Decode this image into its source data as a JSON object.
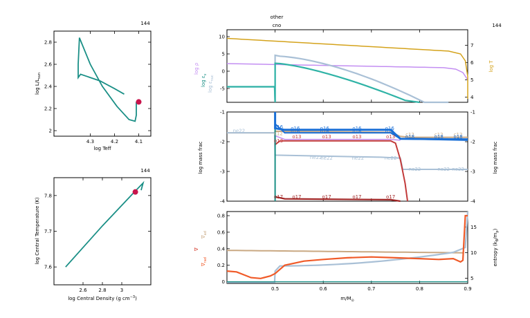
{
  "colors": {
    "teal": "#1a8f86",
    "teal_light": "#2fb3a6",
    "purple": "#c38ef2",
    "gold": "#d4a21a",
    "steel": "#a9c0d6",
    "blue": "#1a6fd6",
    "tan": "#c9a882",
    "red": "#c23a3a",
    "darkred": "#a02424",
    "orange": "#f05a28",
    "magenta_red": "#c8144c",
    "gray": "#999999"
  },
  "hr_panel": {
    "model_number": "144",
    "xlabel": "log Teff",
    "ylabel": "log L/L",
    "ylabel_sub": "sun"
  },
  "center_panel": {
    "model_number": "144",
    "xlabel": "log Central Density (g cm",
    "xlabel_sup": "−3",
    "ylabel": "log Central Temperature (K)"
  },
  "top_panel": {
    "header_line1": "other",
    "header_line2": "cno",
    "model_number": "144",
    "left_labels": [
      "log ρ",
      "log ε",
      "log ε"
    ],
    "left_label_subs": [
      "",
      "ν",
      "nuc"
    ],
    "right_label": "log T"
  },
  "mid_panel": {
    "ylabel_left": "log mass frac",
    "ylabel_right": "log mass frac",
    "species": [
      "ne22",
      "o16",
      "c12",
      "o18",
      "o13",
      "o17"
    ]
  },
  "bot_panel": {
    "left_labels": [
      "∇",
      "∇",
      "∇"
    ],
    "left_label_subs": [
      "ad",
      "",
      "rad"
    ],
    "right_label": "entropy (k",
    "right_label_sub": "B",
    "right_label_tail": "/m",
    "right_label_sub2": "p",
    "right_label_end": ")",
    "xlabel": "m/M",
    "xlabel_sub": "⊙"
  },
  "chart_data": [
    {
      "type": "line",
      "name": "hr_diagram",
      "x_reversed": true,
      "xlim": [
        4.45,
        4.05
      ],
      "ylim": [
        1.95,
        2.9
      ],
      "xticks": [
        4.3,
        4.2,
        4.1
      ],
      "yticks": [
        2,
        2.2,
        2.4,
        2.6,
        2.8
      ],
      "track": [
        [
          4.16,
          2.33
        ],
        [
          4.2,
          2.38
        ],
        [
          4.26,
          2.45
        ],
        [
          4.34,
          2.51
        ],
        [
          4.35,
          2.48
        ],
        [
          4.35,
          2.6
        ],
        [
          4.345,
          2.84
        ],
        [
          4.3,
          2.6
        ],
        [
          4.25,
          2.4
        ],
        [
          4.19,
          2.22
        ],
        [
          4.14,
          2.1
        ],
        [
          4.115,
          2.085
        ],
        [
          4.11,
          2.14
        ],
        [
          4.11,
          2.21
        ],
        [
          4.11,
          2.26
        ]
      ],
      "current": [
        4.1,
        2.26
      ]
    },
    {
      "type": "line",
      "name": "central_conditions",
      "xlim": [
        2.3,
        3.3
      ],
      "ylim": [
        7.55,
        7.85
      ],
      "xticks": [
        2.6,
        2.8,
        3
      ],
      "yticks": [
        7.6,
        7.7,
        7.8
      ],
      "track": [
        [
          2.42,
          7.6
        ],
        [
          2.8,
          7.715
        ],
        [
          3.13,
          7.81
        ],
        [
          3.22,
          7.835
        ],
        [
          3.2,
          7.815
        ]
      ],
      "current": [
        3.14,
        7.81
      ]
    },
    {
      "type": "line",
      "name": "structure_top",
      "xlim": [
        0.4,
        0.9
      ],
      "ylim": [
        -9,
        12
      ],
      "ylim_right": [
        3.7,
        7.9
      ],
      "xticks": [
        0.5,
        0.6,
        0.7,
        0.8,
        0.9
      ],
      "yticks": [
        -5,
        0,
        5,
        10
      ],
      "yticks_right": [
        4,
        5,
        6,
        7
      ]
    },
    {
      "type": "line",
      "name": "abundances",
      "xlim": [
        0.4,
        0.9
      ],
      "ylim": [
        -4,
        -1
      ],
      "xticks": [
        0.5,
        0.6,
        0.7,
        0.8,
        0.9
      ],
      "yticks": [
        -4,
        -3,
        -2,
        -1
      ]
    },
    {
      "type": "line",
      "name": "gradients",
      "xlim": [
        0.4,
        0.9
      ],
      "ylim": [
        -0.02,
        0.85
      ],
      "ylim_right": [
        4,
        18
      ],
      "xticks": [
        0.5,
        0.6,
        0.7,
        0.8,
        0.9
      ],
      "yticks": [
        0,
        0.2,
        0.4,
        0.6,
        0.8
      ],
      "yticks_right": [
        5,
        10,
        15
      ]
    }
  ]
}
